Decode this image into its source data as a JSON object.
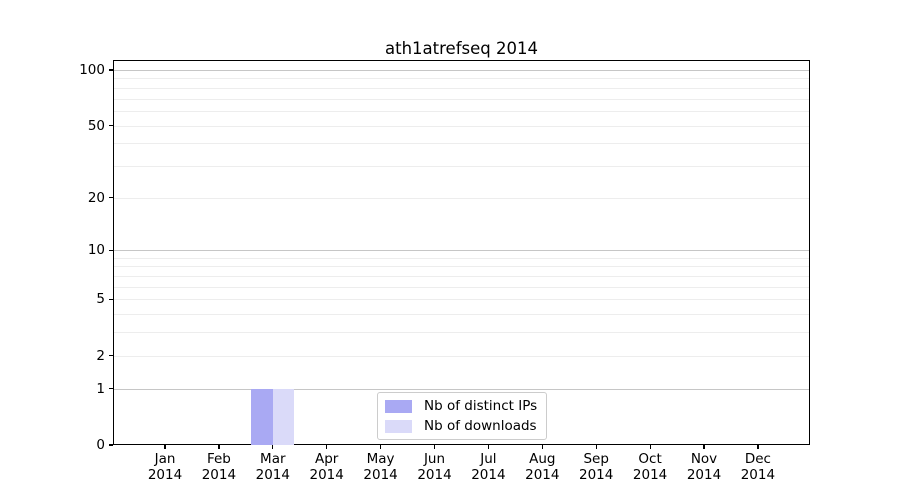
{
  "figure": {
    "background": "#ffffff"
  },
  "chart_data": {
    "type": "bar",
    "title": "ath1atrefseq 2014",
    "xlabel": "",
    "ylabel": "",
    "categories": [
      "Jan 2014",
      "Feb 2014",
      "Mar 2014",
      "Apr 2014",
      "May 2014",
      "Jun 2014",
      "Jul 2014",
      "Aug 2014",
      "Sep 2014",
      "Oct 2014",
      "Nov 2014",
      "Dec 2014"
    ],
    "x_tick_months": [
      "Jan",
      "Feb",
      "Mar",
      "Apr",
      "May",
      "Jun",
      "Jul",
      "Aug",
      "Sep",
      "Oct",
      "Nov",
      "Dec"
    ],
    "x_tick_year": "2014",
    "series": [
      {
        "name": "Nb of distinct IPs",
        "color": "#a9a9f3",
        "values": [
          0,
          0,
          1,
          0,
          0,
          0,
          0,
          0,
          0,
          0,
          0,
          0
        ]
      },
      {
        "name": "Nb of downloads",
        "color": "#dadaf9",
        "values": [
          0,
          0,
          1,
          0,
          0,
          0,
          0,
          0,
          0,
          0,
          0,
          0
        ]
      }
    ],
    "y_axis": {
      "scale": "log1p",
      "tick_labels": [
        "0",
        "1",
        "2",
        "5",
        "10",
        "20",
        "50",
        "100"
      ],
      "tick_values": [
        0,
        1,
        2,
        5,
        10,
        20,
        50,
        100
      ],
      "major_grid_values": [
        1,
        10,
        100
      ],
      "minor_grid_values": [
        2,
        3,
        4,
        5,
        6,
        7,
        8,
        9,
        20,
        30,
        40,
        50,
        60,
        70,
        80,
        90
      ],
      "ylim": [
        0,
        113
      ]
    },
    "grid": true,
    "legend": {
      "position": "lower center",
      "entries": [
        "Nb of distinct IPs",
        "Nb of downloads"
      ]
    }
  },
  "colors": {
    "grid_major": "#c6c6c6",
    "grid_minor": "#ededed",
    "spine": "#000000",
    "text": "#000000",
    "legend_border": "#cccccc",
    "legend_background": "#ffffff"
  }
}
